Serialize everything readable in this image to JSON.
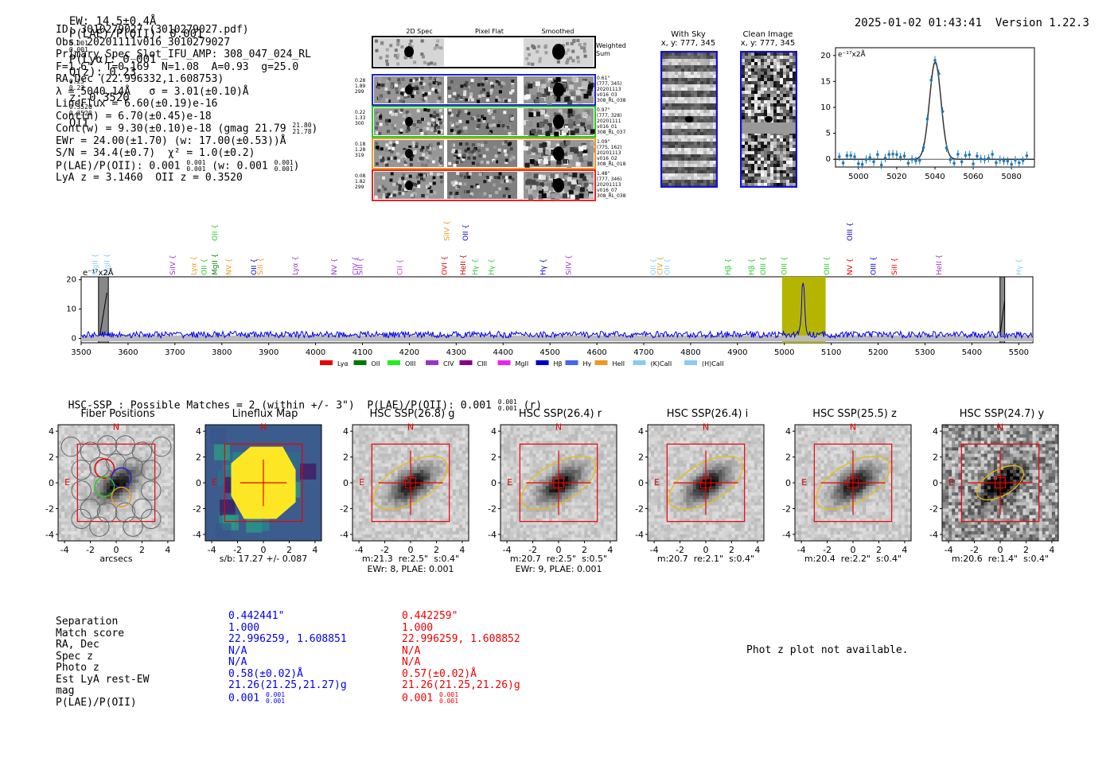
{
  "header": {
    "ew": "EW: 14.5±0.4Å",
    "plae_label": "P(LAE)/P(OII): 0.001",
    "plae_hi": "0.001",
    "plae_lo": "0.001",
    "plya": "P(Lyα): 0.001",
    "qz_label": "Q(z): 0.23",
    "qz_hi": "0.23",
    "qz_lo": "0.23",
    "z_label": "z: 0.3520",
    "z_hi": "0.3520",
    "z_lo": "0.3520",
    "z_line": "OII",
    "timestamp": "2025-01-02 01:43:41",
    "version": "Version 1.22.3"
  },
  "info": [
    "ID: 3010279027 (3010279027.pdf)",
    "Obs: 20201111v016_3010279027",
    "Primary Spec_Slot_IFU_AMP: 308_047_024_RL",
    "F=1.6\"  T=0.169  N=1.08  A=0.93  g=25.0",
    "RA,Dec (22.996332,1.608753)",
    "λ = 5040.14Å   σ = 3.01(±0.10)Å",
    "LineFlux = 6.60(±0.19)e-16",
    "Cont(n) = 6.70(±0.45)e-18",
    "Cont(w) = 9.30(±0.10)e-18 (gmag 21.79",
    "EWr = 24.00(±1.70) (w: 17.00(±0.53))Å",
    "S/N = 34.4(±0.7)  χ² = 1.0(±0.2)",
    "P(LAE)/P(OII): 0.001",
    "LyA z = 3.1460  OII z = 0.3520"
  ],
  "info_extra": {
    "gmag_hi": "21.80",
    "gmag_lo": "21.78",
    "plae_hi": "0.001",
    "plae_lo": "0.001",
    "plae_w": "(w: 0.001",
    "plae_w_hi": "0.001",
    "plae_w_lo": "0.001",
    "close": ")"
  },
  "cutouts": {
    "col_titles": [
      "2D Spec",
      "Pixel Flat",
      "Smoothed"
    ],
    "weighted_sum": "Weighted\nSum",
    "rows": [
      {
        "left": "0.28\n1.89\n299",
        "right": "0.61\"\n(777, 345)\n20201113\nv016_03\n308_RL_038",
        "color": "#2222cc"
      },
      {
        "left": "0.22\n1.33\n300",
        "right": "0.97\"\n(777, 328)\n20201111\nv016_01\n308_RL_037",
        "color": "#22cc22"
      },
      {
        "left": "0.18\n1.28\n319",
        "right": "1.09\"\n(775, 162)\n20201113\nv016_02\n308_RL_018",
        "color": "#ee9922"
      },
      {
        "left": "0.08\n1.82\n299",
        "right": "1.48\"\n(777, 346)\n20201113\nv016_07\n308_RL_038",
        "color": "#ee2222"
      }
    ]
  },
  "sky": {
    "title1": "With Sky",
    "title2": "x, y: 777, 345"
  },
  "clean": {
    "title1": "Clean Image",
    "title2": "x, y: 777, 345"
  },
  "zoom": {
    "unit": "e⁻¹⁷x2Å",
    "yticks": [
      "20",
      "15",
      "10",
      "5",
      "0"
    ],
    "xticks": [
      "5000",
      "5020",
      "5040",
      "5060",
      "5080"
    ]
  },
  "spectrum": {
    "unit": "e⁻¹⁷x2Å",
    "yticks": [
      "20",
      "10",
      "0"
    ],
    "xticks": [
      "3500",
      "3600",
      "3700",
      "3800",
      "3900",
      "4000",
      "4100",
      "4200",
      "4300",
      "4400",
      "4500",
      "4600",
      "4700",
      "4800",
      "4900",
      "5000",
      "5100",
      "5200",
      "5300",
      "5400",
      "5500"
    ],
    "lines": [
      {
        "t": "MgII",
        "x": 3530,
        "c": "#88ccee"
      },
      {
        "t": "MgII",
        "x": 3555,
        "c": "#88ccee"
      },
      {
        "t": "SiIV",
        "x": 3695,
        "c": "#9933cc"
      },
      {
        "t": "Lyα",
        "x": 3740,
        "c": "#ee9922"
      },
      {
        "t": "OII",
        "x": 3762,
        "c": "#22cc22"
      },
      {
        "t": "MgII",
        "x": 3785,
        "c": "#008800"
      },
      {
        "t": "NV",
        "x": 3815,
        "c": "#ee9922"
      },
      {
        "t": "OII",
        "x": 3868,
        "c": "#0000cc"
      },
      {
        "t": "SiII",
        "x": 3882,
        "c": "#ee9922"
      },
      {
        "t": "Lyα",
        "x": 3957,
        "c": "#9933cc"
      },
      {
        "t": "NV",
        "x": 4040,
        "c": "#9933cc"
      },
      {
        "t": "CIV",
        "x": 4085,
        "c": "#9933cc"
      },
      {
        "t": "SiII",
        "x": 4095,
        "c": "#9933cc"
      },
      {
        "t": "CII",
        "x": 4180,
        "c": "#cc44cc"
      },
      {
        "t": "OVI",
        "x": 4275,
        "c": "#ee0000"
      },
      {
        "t": "HeII",
        "x": 4315,
        "c": "#cc0000"
      },
      {
        "t": "Hγ",
        "x": 4340,
        "c": "#33cc33"
      },
      {
        "t": "Hγ",
        "x": 4375,
        "c": "#33cc33"
      },
      {
        "t": "Hγ",
        "x": 4485,
        "c": "#0000cc"
      },
      {
        "t": "SiIV",
        "x": 4540,
        "c": "#9933cc"
      },
      {
        "t": "OII",
        "x": 4720,
        "c": "#88ccee"
      },
      {
        "t": "CIV",
        "x": 4735,
        "c": "#ee9922"
      },
      {
        "t": "OII",
        "x": 4750,
        "c": "#88ccee"
      },
      {
        "t": "Hβ",
        "x": 4880,
        "c": "#22cc22"
      },
      {
        "t": "Hβ",
        "x": 4930,
        "c": "#22cc22"
      },
      {
        "t": "OIII",
        "x": 4955,
        "c": "#22cc22"
      },
      {
        "t": "OIII",
        "x": 5000,
        "c": "#22cc22"
      },
      {
        "t": "OIII",
        "x": 5090,
        "c": "#22cc22"
      },
      {
        "t": "NV",
        "x": 5140,
        "c": "#ee0000"
      },
      {
        "t": "OIII",
        "x": 5190,
        "c": "#0000cc"
      },
      {
        "t": "SiII",
        "x": 5235,
        "c": "#ee0000"
      },
      {
        "t": "HeII",
        "x": 5330,
        "c": "#9933cc"
      },
      {
        "t": "Hγ",
        "x": 5500,
        "c": "#88ccee"
      }
    ],
    "top_lines": [
      {
        "t": "OII",
        "x": 3785,
        "c": "#22cc22"
      },
      {
        "t": "SiIV",
        "x": 4280,
        "c": "#ee9922"
      },
      {
        "t": "OII",
        "x": 4320,
        "c": "#0000cc"
      },
      {
        "t": "OIII",
        "x": 5140,
        "c": "#0000cc"
      }
    ]
  },
  "legend": [
    {
      "t": "Lyα",
      "c": "#ee0000"
    },
    {
      "t": "OII",
      "c": "#007700"
    },
    {
      "t": "OIII",
      "c": "#22ee22"
    },
    {
      "t": "CIV",
      "c": "#9933cc"
    },
    {
      "t": "CIII",
      "c": "#880088"
    },
    {
      "t": "MgII",
      "c": "#ee22ee"
    },
    {
      "t": "Hβ",
      "c": "#0000cc"
    },
    {
      "t": "Hγ",
      "c": "#4466ee"
    },
    {
      "t": "HeII",
      "c": "#ee9922"
    },
    {
      "t": "(K)CaII",
      "c": "#88ccee"
    },
    {
      "t": "(H)CaII",
      "c": "#88ccee"
    }
  ],
  "hsc": {
    "title": "HSC-SSP : Possible Matches = 2 (within +/- 3\")  P(LAE)/P(OII): 0.001",
    "plae_hi": "0.001",
    "plae_lo": "0.001",
    "band": "(r)"
  },
  "thumbs": [
    {
      "title": "Fiber Positions",
      "cap1": "arcsecs",
      "cap2": "",
      "type": "fiber"
    },
    {
      "title": "Lineflux Map",
      "cap1": "s/b: 17.27 +/- 0.087",
      "cap2": "",
      "type": "flux"
    },
    {
      "title": "HSC SSP(26.8) g",
      "cap1": "m:21.3  re:2.5\"  s:0.4\"",
      "cap2": "EWr: 8, PLAE: 0.001",
      "type": "hsc"
    },
    {
      "title": "HSC SSP(26.4) r",
      "cap1": "m:20.7  re:2.5\"  s:0.5\"",
      "cap2": "EWr: 9, PLAE: 0.001",
      "type": "hsc"
    },
    {
      "title": "HSC SSP(26.4) i",
      "cap1": "m:20.7  re:2.1\"  s:0.4\"",
      "cap2": "",
      "type": "hsc"
    },
    {
      "title": "HSC SSP(25.5) z",
      "cap1": "m:20.4  re:2.2\"  s:0.4\"",
      "cap2": "",
      "type": "hsc"
    },
    {
      "title": "HSC SSP(24.7) y",
      "cap1": "m:20.6  re:1.4\"  s:0.4\"",
      "cap2": "",
      "type": "hscy"
    }
  ],
  "thumb_axis": {
    "ticks": [
      "4",
      "2",
      "0",
      "-2",
      "-4"
    ],
    "xticks": [
      "-4",
      "-2",
      "0",
      "2",
      "4"
    ],
    "north": "N",
    "east": "E"
  },
  "match_table": {
    "labels": [
      "Separation",
      "Match score",
      "RA, Dec",
      "Spec z",
      "Photo z",
      "Est LyA rest-EW",
      "mag",
      "P(LAE)/P(OII)"
    ],
    "col1": [
      "0.442441\"",
      "1.000",
      "22.996259, 1.608851",
      "N/A",
      "N/A",
      "0.58(±0.02)Å",
      "21.26(21.25,21.27)g",
      "0.001"
    ],
    "col2": [
      "0.442259\"",
      "1.000",
      "22.996259, 1.608852",
      "N/A",
      "N/A",
      "0.57(±0.02)Å",
      "21.26(21.25,21.26)g",
      "0.001"
    ],
    "col1_plae_hi": "0.001",
    "col1_plae_lo": "0.001",
    "col2_plae_hi": "0.001",
    "col2_plae_lo": "0.001"
  },
  "photz_note": "Phot z plot not available."
}
